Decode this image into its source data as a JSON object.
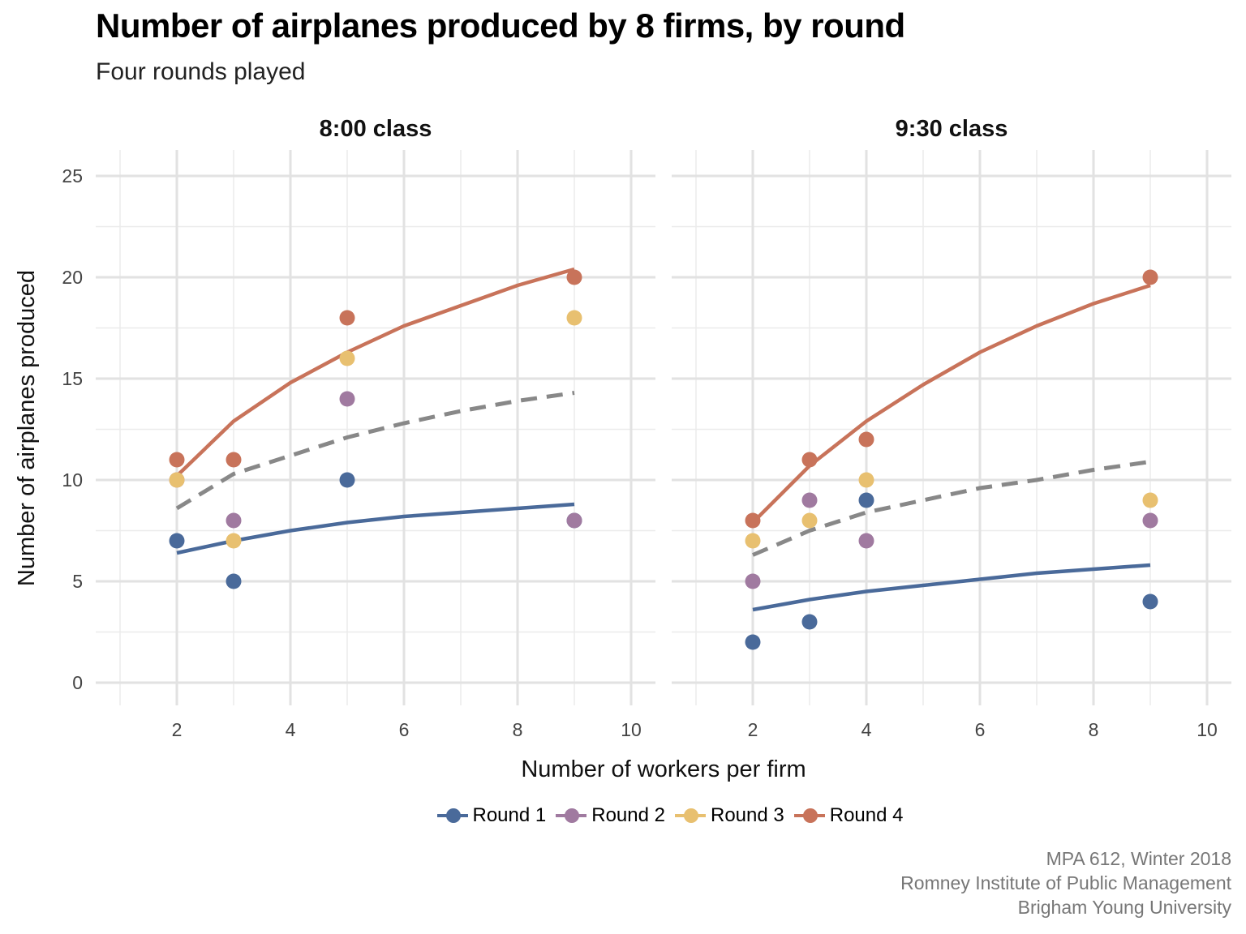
{
  "title": "Number of airplanes produced by 8 firms, by round",
  "subtitle": "Four rounds played",
  "caption": [
    "MPA 612, Winter 2018",
    "Romney Institute of Public Management",
    "Brigham Young University"
  ],
  "colors": {
    "round1": "#4a6a9a",
    "round2": "#a07aa0",
    "round3": "#e8c070",
    "round4": "#c8735a",
    "overall_fit": "#888888"
  },
  "chart_data": {
    "type": "scatter",
    "title": "Number of airplanes produced by 8 firms, by round",
    "subtitle": "Four rounds played",
    "xlabel": "Number of workers per firm",
    "ylabel": "Number of airplanes produced",
    "xlim": [
      1,
      10
    ],
    "ylim": [
      0,
      25
    ],
    "x_ticks": [
      2,
      4,
      6,
      8,
      10
    ],
    "y_ticks": [
      0,
      5,
      10,
      15,
      20,
      25
    ],
    "grid": true,
    "legend_position": "bottom",
    "series_names": [
      "Round 1",
      "Round 2",
      "Round 3",
      "Round 4"
    ],
    "panels": [
      {
        "name": "8:00 class",
        "series": [
          {
            "name": "Round 1",
            "points": [
              [
                2,
                7
              ],
              [
                3,
                5
              ],
              [
                5,
                10
              ],
              [
                9,
                8
              ]
            ],
            "fit": [
              [
                2,
                6.4
              ],
              [
                3,
                7.0
              ],
              [
                4,
                7.5
              ],
              [
                5,
                7.9
              ],
              [
                6,
                8.2
              ],
              [
                7,
                8.4
              ],
              [
                8,
                8.6
              ],
              [
                9,
                8.8
              ]
            ]
          },
          {
            "name": "Round 2",
            "points": [
              [
                2,
                10
              ],
              [
                3,
                8
              ],
              [
                5,
                14
              ],
              [
                9,
                8
              ]
            ]
          },
          {
            "name": "Round 3",
            "points": [
              [
                2,
                10
              ],
              [
                3,
                7
              ],
              [
                5,
                16
              ],
              [
                9,
                18
              ]
            ]
          },
          {
            "name": "Round 4",
            "points": [
              [
                2,
                11
              ],
              [
                3,
                11
              ],
              [
                5,
                18
              ],
              [
                9,
                20
              ]
            ],
            "fit": [
              [
                2,
                10.2
              ],
              [
                3,
                12.9
              ],
              [
                4,
                14.8
              ],
              [
                5,
                16.3
              ],
              [
                6,
                17.6
              ],
              [
                7,
                18.6
              ],
              [
                8,
                19.6
              ],
              [
                9,
                20.4
              ]
            ]
          }
        ],
        "overall_fit": [
          [
            2,
            8.6
          ],
          [
            3,
            10.3
          ],
          [
            4,
            11.2
          ],
          [
            5,
            12.1
          ],
          [
            6,
            12.8
          ],
          [
            7,
            13.4
          ],
          [
            8,
            13.9
          ],
          [
            9,
            14.3
          ]
        ]
      },
      {
        "name": "9:30 class",
        "series": [
          {
            "name": "Round 1",
            "points": [
              [
                2,
                2
              ],
              [
                3,
                3
              ],
              [
                4,
                9
              ],
              [
                9,
                4
              ]
            ],
            "fit": [
              [
                2,
                3.6
              ],
              [
                3,
                4.1
              ],
              [
                4,
                4.5
              ],
              [
                5,
                4.8
              ],
              [
                6,
                5.1
              ],
              [
                7,
                5.4
              ],
              [
                8,
                5.6
              ],
              [
                9,
                5.8
              ]
            ]
          },
          {
            "name": "Round 2",
            "points": [
              [
                2,
                5
              ],
              [
                3,
                9
              ],
              [
                4,
                7
              ],
              [
                9,
                8
              ]
            ]
          },
          {
            "name": "Round 3",
            "points": [
              [
                2,
                7
              ],
              [
                3,
                8
              ],
              [
                4,
                10
              ],
              [
                9,
                9
              ]
            ]
          },
          {
            "name": "Round 4",
            "points": [
              [
                2,
                8
              ],
              [
                3,
                11
              ],
              [
                4,
                12
              ],
              [
                9,
                20
              ]
            ],
            "fit": [
              [
                2,
                7.9
              ],
              [
                3,
                10.7
              ],
              [
                4,
                12.9
              ],
              [
                5,
                14.7
              ],
              [
                6,
                16.3
              ],
              [
                7,
                17.6
              ],
              [
                8,
                18.7
              ],
              [
                9,
                19.6
              ]
            ]
          }
        ],
        "overall_fit": [
          [
            2,
            6.3
          ],
          [
            3,
            7.5
          ],
          [
            4,
            8.4
          ],
          [
            5,
            9.0
          ],
          [
            6,
            9.6
          ],
          [
            7,
            10.0
          ],
          [
            8,
            10.5
          ],
          [
            9,
            10.9
          ]
        ]
      }
    ]
  }
}
